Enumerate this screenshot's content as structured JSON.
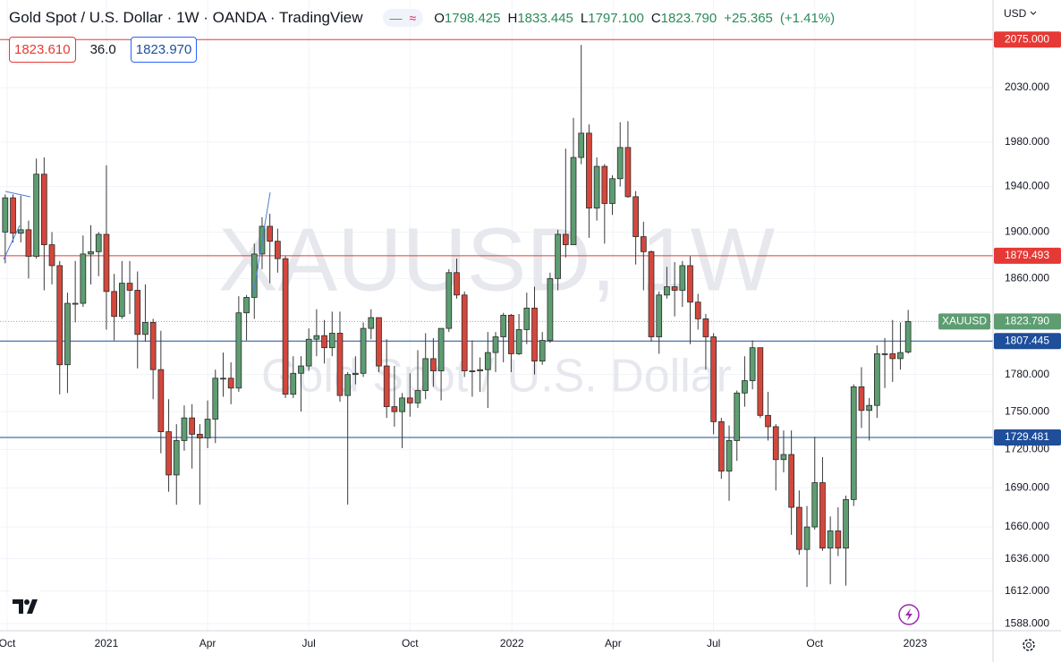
{
  "chart_data": {
    "type": "candlestick",
    "title": "Gold Spot / U.S. Dollar · 1W · OANDA · TradingView",
    "legend": {
      "open_prefix": "O",
      "open": "1798.425",
      "high_prefix": "H",
      "high": "1833.445",
      "low_prefix": "L",
      "low": "1797.100",
      "close_prefix": "C",
      "close": "1823.790",
      "change": "+25.365",
      "change_pct": "(+1.41%)"
    },
    "sell": "1823.610",
    "spread": "36.0",
    "buy": "1823.970",
    "currency": "USD",
    "watermark": {
      "symbol": "XAUUSD, 1W",
      "description": "Gold Spot / U.S. Dollar"
    },
    "symbol_label": "XAUUSD",
    "open": [
      1900,
      1930,
      1899,
      1902,
      1879,
      1951,
      1889,
      1871,
      1788,
      1839,
      1839,
      1881,
      1883,
      1898,
      1849,
      1828,
      1856,
      1850,
      1813,
      1823,
      1784,
      1734,
      1700,
      1727,
      1745,
      1732,
      1729,
      1744,
      1777,
      1777,
      1769,
      1831,
      1844,
      1881,
      1905,
      1892,
      1877,
      1764,
      1781,
      1787,
      1809,
      1812,
      1802,
      1814,
      1763,
      1780,
      1781,
      1818,
      1827,
      1787,
      1754,
      1750,
      1761,
      1757,
      1767,
      1793,
      1783,
      1818,
      1865,
      1846,
      1783,
      1783,
      1784,
      1798,
      1811,
      1829,
      1797,
      1817,
      1835,
      1791,
      1808,
      1860,
      1898,
      1889,
      1966,
      1988,
      1921,
      1958,
      1925,
      1947,
      1975,
      1931,
      1896,
      1883,
      1811,
      1846,
      1853,
      1850,
      1871,
      1840,
      1826,
      1811,
      1742,
      1703,
      1727,
      1765,
      1775,
      1802,
      1747,
      1738,
      1712,
      1716,
      1675,
      1643,
      1660,
      1694,
      1644,
      1657,
      1644,
      1681,
      1770,
      1751,
      1755,
      1797,
      1797,
      1793,
      1798.425
    ],
    "high": [
      1933,
      1933,
      1932,
      1910,
      1965,
      1966,
      1900,
      1875,
      1848,
      1875,
      1897,
      1906,
      1900,
      1959,
      1864,
      1875,
      1875,
      1866,
      1855,
      1826,
      1816,
      1760,
      1740,
      1755,
      1756,
      1740,
      1759,
      1784,
      1798,
      1790,
      1845,
      1846,
      1890,
      1913,
      1916,
      1903,
      1879,
      1795,
      1795,
      1818,
      1834,
      1825,
      1832,
      1832,
      1782,
      1795,
      1823,
      1834,
      1827,
      1809,
      1787,
      1765,
      1781,
      1800,
      1814,
      1810,
      1818,
      1868,
      1877,
      1849,
      1808,
      1794,
      1815,
      1815,
      1831,
      1830,
      1830,
      1848,
      1853,
      1815,
      1865,
      1902,
      1974,
      2002,
      2070,
      1996,
      1966,
      1960,
      1950,
      1998,
      1999,
      1936,
      1909,
      1884,
      1849,
      1870,
      1874,
      1875,
      1879,
      1847,
      1830,
      1814,
      1745,
      1739,
      1767,
      1795,
      1808,
      1802,
      1766,
      1740,
      1735,
      1735,
      1688,
      1676,
      1730,
      1714,
      1668,
      1675,
      1684,
      1772,
      1786,
      1761,
      1804,
      1810,
      1825,
      1823,
      1833.445
    ],
    "low": [
      1873,
      1891,
      1891,
      1860,
      1877,
      1850,
      1855,
      1764,
      1765,
      1823,
      1836,
      1855,
      1862,
      1817,
      1808,
      1826,
      1830,
      1785,
      1807,
      1760,
      1717,
      1687,
      1677,
      1719,
      1705,
      1677,
      1721,
      1725,
      1762,
      1756,
      1766,
      1808,
      1826,
      1868,
      1856,
      1865,
      1761,
      1761,
      1750,
      1783,
      1795,
      1789,
      1795,
      1758,
      1677,
      1772,
      1778,
      1809,
      1782,
      1745,
      1738,
      1721,
      1746,
      1753,
      1760,
      1770,
      1759,
      1815,
      1843,
      1778,
      1762,
      1766,
      1753,
      1782,
      1790,
      1782,
      1796,
      1805,
      1780,
      1788,
      1806,
      1850,
      1878,
      1889,
      1960,
      1895,
      1910,
      1890,
      1915,
      1940,
      1930,
      1872,
      1850,
      1807,
      1797,
      1843,
      1828,
      1836,
      1805,
      1817,
      1784,
      1732,
      1697,
      1680,
      1711,
      1754,
      1768,
      1745,
      1727,
      1688,
      1702,
      1654,
      1639,
      1615,
      1658,
      1642,
      1617,
      1638,
      1616,
      1676,
      1737,
      1727,
      1745,
      1769,
      1774,
      1784,
      1797.1
    ],
    "close": [
      1930,
      1899,
      1902,
      1879,
      1951,
      1889,
      1871,
      1788,
      1839,
      1839,
      1881,
      1883,
      1898,
      1849,
      1828,
      1856,
      1850,
      1813,
      1823,
      1784,
      1734,
      1700,
      1727,
      1745,
      1732,
      1729,
      1744,
      1777,
      1777,
      1769,
      1831,
      1844,
      1881,
      1905,
      1892,
      1877,
      1764,
      1781,
      1787,
      1809,
      1812,
      1802,
      1814,
      1763,
      1780,
      1781,
      1818,
      1827,
      1787,
      1754,
      1750,
      1761,
      1757,
      1767,
      1793,
      1783,
      1818,
      1865,
      1846,
      1783,
      1783,
      1784,
      1798,
      1811,
      1829,
      1797,
      1817,
      1835,
      1791,
      1808,
      1860,
      1898,
      1889,
      1966,
      1988,
      1921,
      1958,
      1925,
      1947,
      1975,
      1931,
      1896,
      1883,
      1811,
      1846,
      1853,
      1850,
      1871,
      1840,
      1826,
      1811,
      1742,
      1703,
      1727,
      1765,
      1775,
      1802,
      1747,
      1738,
      1712,
      1716,
      1675,
      1643,
      1660,
      1694,
      1644,
      1657,
      1644,
      1681,
      1770,
      1751,
      1755,
      1797,
      1797,
      1793,
      1798,
      1823.79
    ],
    "up_color": "#5d9d71",
    "down_color": "#d4473c",
    "log_scale": true,
    "ylim": [
      1583,
      2113
    ],
    "yticks": [
      {
        "value": 2030,
        "label": "2030.000"
      },
      {
        "value": 1980,
        "label": "1980.000"
      },
      {
        "value": 1940,
        "label": "1940.000"
      },
      {
        "value": 1900,
        "label": "1900.000"
      },
      {
        "value": 1860,
        "label": "1860.000"
      },
      {
        "value": 1780,
        "label": "1780.000"
      },
      {
        "value": 1750,
        "label": "1750.000"
      },
      {
        "value": 1720,
        "label": "1720.000"
      },
      {
        "value": 1690,
        "label": "1690.000"
      },
      {
        "value": 1660,
        "label": "1660.000"
      },
      {
        "value": 1636,
        "label": "1636.000"
      },
      {
        "value": 1612,
        "label": "1612.000"
      },
      {
        "value": 1588,
        "label": "1588.000"
      }
    ],
    "xlim": [
      -0.67,
      126.9
    ],
    "xticks": [
      {
        "value": 0.25,
        "label": "Oct"
      },
      {
        "value": 13,
        "label": "2021"
      },
      {
        "value": 26,
        "label": "Apr"
      },
      {
        "value": 39,
        "label": "Jul"
      },
      {
        "value": 52,
        "label": "Oct"
      },
      {
        "value": 65.1,
        "label": "2022"
      },
      {
        "value": 78.1,
        "label": "Apr"
      },
      {
        "value": 91,
        "label": "Jul"
      },
      {
        "value": 104,
        "label": "Oct"
      },
      {
        "value": 116.9,
        "label": "2023"
      }
    ],
    "grid": true,
    "lines": [
      {
        "value": 2075,
        "label": "2075.000",
        "color": "#e53935"
      },
      {
        "value": 1879.493,
        "label": "1879.493",
        "color": "#e53935"
      },
      {
        "value": 1807.445,
        "label": "1807.445",
        "color": "#1f4e9a"
      },
      {
        "value": 1729.481,
        "label": "1729.481",
        "color": "#1f4e9a"
      }
    ],
    "last_price": {
      "value": 1823.79,
      "label": "1823.790",
      "color": "#5d9d71"
    }
  }
}
